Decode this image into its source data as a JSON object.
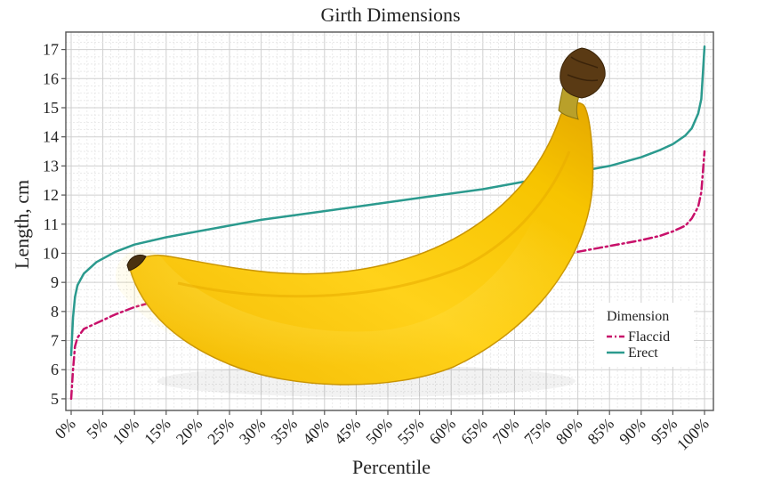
{
  "chart_data": {
    "type": "line",
    "title": "Girth Dimensions",
    "xlabel": "Percentile",
    "ylabel": "Length, cm",
    "x_ticks": [
      "0%",
      "5%",
      "10%",
      "15%",
      "20%",
      "25%",
      "30%",
      "35%",
      "40%",
      "45%",
      "50%",
      "55%",
      "60%",
      "65%",
      "70%",
      "75%",
      "80%",
      "85%",
      "90%",
      "95%",
      "100%"
    ],
    "y_ticks": [
      "5",
      "6",
      "7",
      "8",
      "9",
      "10",
      "11",
      "12",
      "13",
      "14",
      "15",
      "16",
      "17"
    ],
    "xlim": [
      0,
      100
    ],
    "ylim": [
      4.6,
      17.6
    ],
    "grid": true,
    "legend": {
      "title": "Dimension",
      "placement": "bottom-right"
    },
    "series": [
      {
        "name": "Flaccid",
        "color": "#c8106a",
        "style": "dash-dot",
        "x": [
          0,
          0.3,
          0.6,
          1,
          2,
          4,
          7,
          10,
          15,
          20,
          25,
          30,
          35,
          40,
          45,
          50,
          55,
          60,
          65,
          70,
          75,
          80,
          85,
          90,
          93,
          95,
          97,
          98,
          99,
          99.5,
          100
        ],
        "y": [
          5.0,
          6.0,
          6.8,
          7.1,
          7.4,
          7.6,
          7.9,
          8.15,
          8.45,
          8.65,
          8.8,
          8.95,
          9.05,
          9.2,
          9.3,
          9.4,
          9.5,
          9.6,
          9.7,
          9.8,
          9.9,
          10.05,
          10.25,
          10.45,
          10.6,
          10.75,
          10.95,
          11.2,
          11.6,
          12.1,
          13.5
        ]
      },
      {
        "name": "Erect",
        "color": "#2b9a8e",
        "style": "solid",
        "x": [
          0,
          0.3,
          0.6,
          1,
          2,
          4,
          7,
          10,
          15,
          20,
          25,
          30,
          35,
          40,
          45,
          50,
          55,
          60,
          65,
          70,
          75,
          80,
          85,
          90,
          93,
          95,
          97,
          98,
          99,
          99.5,
          100
        ],
        "y": [
          6.5,
          7.8,
          8.5,
          8.9,
          9.3,
          9.7,
          10.05,
          10.3,
          10.55,
          10.75,
          10.95,
          11.15,
          11.3,
          11.45,
          11.6,
          11.75,
          11.9,
          12.05,
          12.2,
          12.4,
          12.6,
          12.8,
          13.0,
          13.3,
          13.55,
          13.75,
          14.05,
          14.3,
          14.8,
          15.3,
          17.1
        ]
      }
    ]
  },
  "overlay": {
    "image": "banana-image"
  }
}
